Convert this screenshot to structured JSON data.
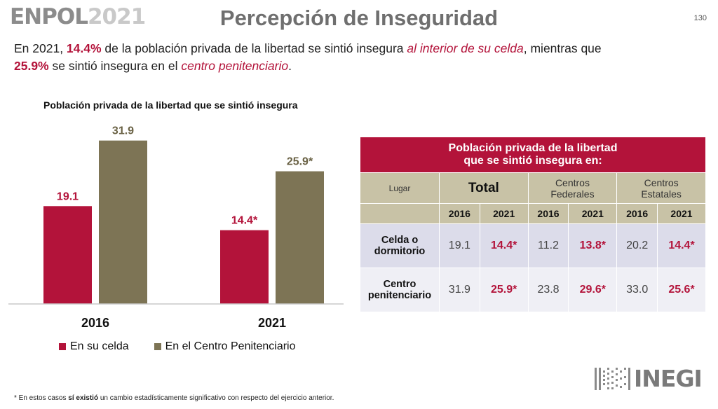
{
  "header": {
    "logo_main": "ENPOL",
    "logo_year": "2021",
    "title": "Percepción de Inseguridad",
    "page_number": "130"
  },
  "intro": {
    "p1": "En 2021, ",
    "v1": "14.4%",
    "p2": " de la población privada de la libertad se sintió insegura ",
    "e1": "al interior de su celda",
    "p3": ", mientras que ",
    "v2": "25.9%",
    "p4": " se sintió insegura en el ",
    "e2": "centro penitenciario",
    "p5": "."
  },
  "chart_data": {
    "type": "bar",
    "title": "Población privada de la libertad que se sintió insegura",
    "categories": [
      "2016",
      "2021"
    ],
    "series": [
      {
        "name": "En su celda",
        "values": [
          19.1,
          14.4
        ],
        "labels": [
          "19.1",
          "14.4*"
        ],
        "color": "#b3133a"
      },
      {
        "name": "En el Centro Penitenciario",
        "values": [
          31.9,
          25.9
        ],
        "labels": [
          "31.9",
          "25.9*"
        ],
        "color": "#7d7455"
      }
    ],
    "xlabel": "",
    "ylabel": "",
    "ylim": [
      0,
      35
    ],
    "grid": false,
    "legend": "bottom"
  },
  "table": {
    "title_line1": "Población privada de la libertad",
    "title_line2": "que se sintió insegura en:",
    "lugar": "Lugar",
    "groups": [
      {
        "label1": "Total",
        "label2": ""
      },
      {
        "label1": "Centros",
        "label2": "Federales"
      },
      {
        "label1": "Centros",
        "label2": "Estatales"
      }
    ],
    "years": [
      "2016",
      "2021",
      "2016",
      "2021",
      "2016",
      "2021"
    ],
    "rows": [
      {
        "label1": "Celda o",
        "label2": "dormitorio",
        "values": [
          "19.1",
          "14.4*",
          "11.2",
          "13.8*",
          "20.2",
          "14.4*"
        ]
      },
      {
        "label1": "Centro",
        "label2": "penitenciario",
        "values": [
          "31.9",
          "25.9*",
          "23.8",
          "29.6*",
          "33.0",
          "25.6*"
        ]
      }
    ]
  },
  "footnote": {
    "pre": "* En estos casos ",
    "bold": "sí existió",
    "post": " un cambio estadísticamente significativo con respecto del ejercicio anterior."
  },
  "brand": {
    "name": "INEGI"
  }
}
